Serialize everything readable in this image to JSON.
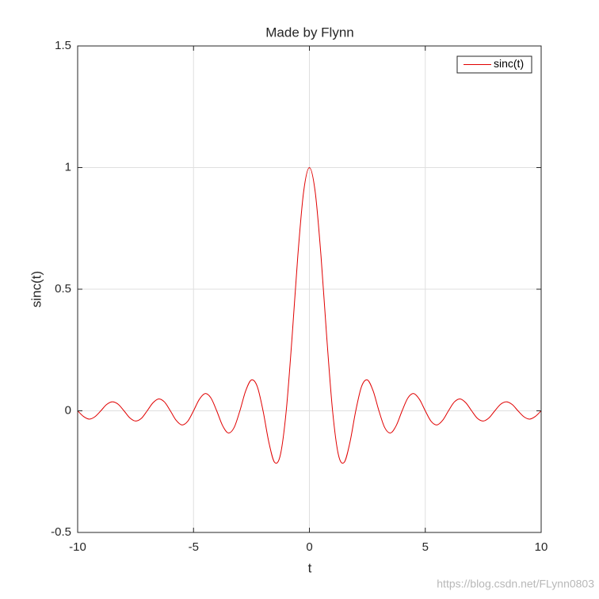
{
  "chart_data": {
    "type": "line",
    "title": "Made by Flynn",
    "x_label": "t",
    "y_label": "sinc(t)",
    "x": [
      -10,
      -9.75,
      -9.5,
      -9.25,
      -9,
      -8.75,
      -8.5,
      -8.25,
      -8,
      -7.75,
      -7.5,
      -7.25,
      -7,
      -6.75,
      -6.5,
      -6.25,
      -6,
      -5.75,
      -5.5,
      -5.25,
      -5,
      -4.75,
      -4.5,
      -4.25,
      -4,
      -3.75,
      -3.5,
      -3.25,
      -3,
      -2.75,
      -2.5,
      -2.25,
      -2,
      -1.75,
      -1.5,
      -1.25,
      -1,
      -0.75,
      -0.5,
      -0.25,
      0,
      0.25,
      0.5,
      0.75,
      1,
      1.25,
      1.5,
      1.75,
      2,
      2.25,
      2.5,
      2.75,
      3,
      3.25,
      3.5,
      3.75,
      4,
      4.25,
      4.5,
      4.75,
      5,
      5.25,
      5.5,
      5.75,
      6,
      6.25,
      6.5,
      6.75,
      7,
      7.25,
      7.5,
      7.75,
      8,
      8.25,
      8.5,
      8.75,
      9,
      9.25,
      9.5,
      9.75,
      10
    ],
    "series": [
      {
        "name": "sinc(t)",
        "color": "#e00000",
        "values": [
          0,
          -0.023,
          -0.034,
          -0.024,
          0,
          0.026,
          0.037,
          0.027,
          0,
          -0.029,
          -0.042,
          -0.031,
          0,
          0.033,
          0.049,
          0.036,
          0,
          -0.039,
          -0.058,
          -0.043,
          0,
          0.047,
          0.071,
          0.053,
          0,
          -0.06,
          -0.091,
          -0.069,
          0,
          0.082,
          0.127,
          0.1,
          0,
          -0.129,
          -0.212,
          -0.18,
          0,
          0.3,
          0.637,
          0.9,
          1,
          0.9,
          0.637,
          0.3,
          0,
          -0.18,
          -0.212,
          -0.129,
          0,
          0.1,
          0.127,
          0.082,
          0,
          -0.069,
          -0.091,
          -0.06,
          0,
          0.053,
          0.071,
          0.047,
          0,
          -0.043,
          -0.058,
          -0.039,
          0,
          0.036,
          0.049,
          0.033,
          0,
          -0.031,
          -0.042,
          -0.029,
          0,
          0.027,
          0.037,
          0.026,
          0,
          -0.024,
          -0.034,
          -0.023,
          0
        ]
      }
    ],
    "xlim": [
      -10,
      10
    ],
    "ylim": [
      -0.5,
      1.5
    ],
    "xticks": [
      -10,
      -5,
      0,
      5,
      10
    ],
    "yticks": [
      -0.5,
      0,
      0.5,
      1,
      1.5
    ],
    "grid": true,
    "legend_position": "northeast"
  },
  "watermark": "https://blog.csdn.net/FLynn0803"
}
